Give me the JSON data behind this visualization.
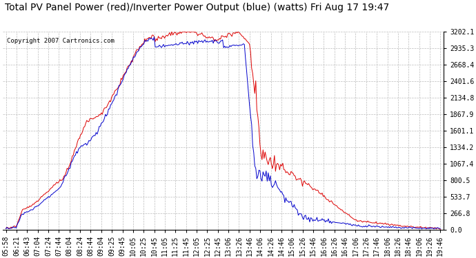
{
  "title": "Total PV Panel Power (red)/Inverter Power Output (blue) (watts) Fri Aug 17 19:47",
  "copyright": "Copyright 2007 Cartronics.com",
  "background_color": "#ffffff",
  "plot_bg_color": "#ffffff",
  "grid_color": "#bbbbbb",
  "y_ticks": [
    0.0,
    266.8,
    533.7,
    800.5,
    1067.4,
    1334.2,
    1601.1,
    1867.9,
    2134.8,
    2401.6,
    2668.4,
    2935.3,
    3202.1
  ],
  "x_tick_labels": [
    "05:58",
    "06:21",
    "06:43",
    "07:04",
    "07:24",
    "07:44",
    "08:04",
    "08:24",
    "08:44",
    "09:04",
    "09:25",
    "09:45",
    "10:05",
    "10:25",
    "10:45",
    "11:05",
    "11:25",
    "11:45",
    "12:05",
    "12:25",
    "12:45",
    "13:06",
    "13:26",
    "13:46",
    "14:06",
    "14:26",
    "14:46",
    "15:06",
    "15:26",
    "15:46",
    "16:06",
    "16:26",
    "16:46",
    "17:06",
    "17:26",
    "17:46",
    "18:06",
    "18:26",
    "18:46",
    "19:06",
    "19:26",
    "19:46"
  ],
  "pv_color": "#dd0000",
  "inv_color": "#0000cc",
  "ylim": [
    0.0,
    3202.1
  ],
  "title_fontsize": 10,
  "tick_fontsize": 7,
  "copyright_fontsize": 6.5
}
